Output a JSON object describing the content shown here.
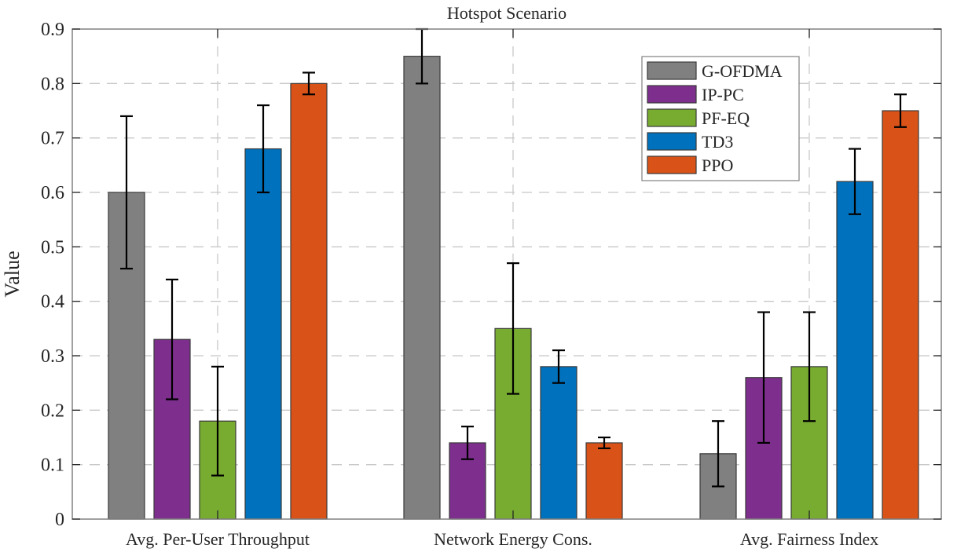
{
  "chart_data": {
    "type": "bar",
    "title": "Hotspot Scenario",
    "xlabel": "",
    "ylabel": "Value",
    "ylim": [
      0,
      0.9
    ],
    "yticks": [
      0,
      0.1,
      0.2,
      0.3,
      0.4,
      0.5,
      0.6,
      0.7,
      0.8,
      0.9
    ],
    "ytick_labels": [
      "0",
      "0.1",
      "0.2",
      "0.3",
      "0.4",
      "0.5",
      "0.6",
      "0.7",
      "0.8",
      "0.9"
    ],
    "grid": true,
    "legend_position": "top-right",
    "categories": [
      "Avg. Per-User Throughput",
      "Network Energy Cons.",
      "Avg. Fairness Index"
    ],
    "series": [
      {
        "name": "G-OFDMA",
        "color": "#808080",
        "values": [
          0.6,
          0.85,
          0.12
        ],
        "err_low": [
          0.46,
          0.8,
          0.06
        ],
        "err_high": [
          0.74,
          0.9,
          0.18
        ]
      },
      {
        "name": "IP-PC",
        "color": "#7E2F8E",
        "values": [
          0.33,
          0.14,
          0.26
        ],
        "err_low": [
          0.22,
          0.11,
          0.14
        ],
        "err_high": [
          0.44,
          0.17,
          0.38
        ]
      },
      {
        "name": "PF-EQ",
        "color": "#77AC30",
        "values": [
          0.18,
          0.35,
          0.28
        ],
        "err_low": [
          0.08,
          0.23,
          0.18
        ],
        "err_high": [
          0.28,
          0.47,
          0.38
        ]
      },
      {
        "name": "TD3",
        "color": "#0072BD",
        "values": [
          0.68,
          0.28,
          0.62
        ],
        "err_low": [
          0.6,
          0.25,
          0.56
        ],
        "err_high": [
          0.76,
          0.31,
          0.68
        ]
      },
      {
        "name": "PPO",
        "color": "#D95319",
        "values": [
          0.8,
          0.14,
          0.75
        ],
        "err_low": [
          0.78,
          0.13,
          0.72
        ],
        "err_high": [
          0.82,
          0.15,
          0.78
        ]
      }
    ]
  }
}
